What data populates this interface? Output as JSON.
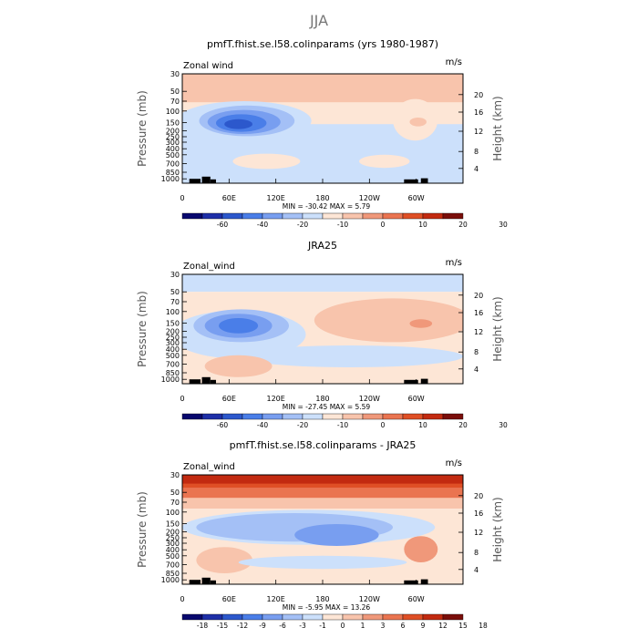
{
  "main_title": "JJA",
  "colors": {
    "neg": [
      "#08086e",
      "#1e2fa8",
      "#2c58cc",
      "#4a7ee8",
      "#789ef0",
      "#a4c0f6",
      "#cce0fb"
    ],
    "pos": [
      "#fde6d6",
      "#f8c4ac",
      "#f0987a",
      "#ea7450",
      "#df4f25",
      "#c22a10",
      "#7a0e0a"
    ]
  },
  "chart_data": [
    {
      "type": "heatmap",
      "title": "pmfT.fhist.se.l58.colinparams (yrs 1980-1987)",
      "variable": "Zonal wind",
      "units": "m/s",
      "ylabel": "Pressure (mb)",
      "ylabel_right": "Height (km)",
      "xticks": [
        "0",
        "60E",
        "120E",
        "180",
        "120W",
        "60W"
      ],
      "yticks": [
        "30",
        "50",
        "70",
        "100",
        "150",
        "200",
        "250",
        "300",
        "400",
        "500",
        "700",
        "850",
        "1000"
      ],
      "yticks_right": [
        "20",
        "16",
        "12",
        "8",
        "4"
      ],
      "stats": "MIN = -30.42   MAX =   5.79",
      "colorbar_labels": [
        "-60",
        "-40",
        "-20",
        "-10",
        "0",
        "10",
        "20",
        "30"
      ]
    },
    {
      "type": "heatmap",
      "title": "JRA25",
      "variable": "Zonal_wind",
      "units": "m/s",
      "ylabel": "Pressure (mb)",
      "ylabel_right": "Height (km)",
      "xticks": [
        "0",
        "60E",
        "120E",
        "180",
        "120W",
        "60W"
      ],
      "yticks": [
        "30",
        "50",
        "70",
        "100",
        "150",
        "200",
        "250",
        "300",
        "400",
        "500",
        "700",
        "850",
        "1000"
      ],
      "yticks_right": [
        "20",
        "16",
        "12",
        "8",
        "4"
      ],
      "stats": "MIN = -27.45   MAX =   5.59",
      "colorbar_labels": [
        "-60",
        "-40",
        "-20",
        "-10",
        "0",
        "10",
        "20",
        "30"
      ]
    },
    {
      "type": "heatmap",
      "title": "pmfT.fhist.se.l58.colinparams - JRA25",
      "variable": "Zonal_wind",
      "units": "m/s",
      "ylabel": "Pressure (mb)",
      "ylabel_right": "Height (km)",
      "xticks": [
        "0",
        "60E",
        "120E",
        "180",
        "120W",
        "60W"
      ],
      "yticks": [
        "30",
        "50",
        "70",
        "100",
        "150",
        "200",
        "250",
        "300",
        "400",
        "500",
        "700",
        "850",
        "1000"
      ],
      "yticks_right": [
        "20",
        "16",
        "12",
        "8",
        "4"
      ],
      "stats": "MIN = -5.95   MAX =  13.26",
      "colorbar_labels": [
        "-18",
        "-15",
        "-12",
        "-9",
        "-6",
        "-3",
        "-1",
        "0",
        "1",
        "3",
        "6",
        "9",
        "12",
        "15",
        "18"
      ]
    }
  ]
}
